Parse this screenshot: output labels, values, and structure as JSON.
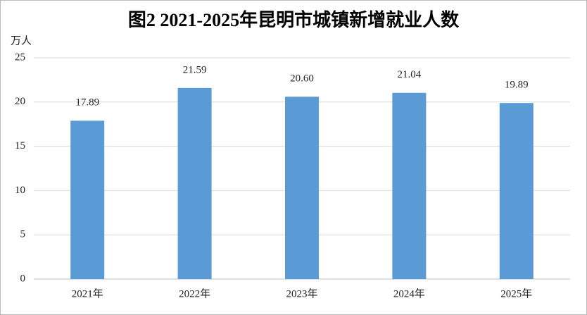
{
  "chart_data": {
    "type": "bar",
    "title": "图2 2021-2025年昆明市城镇新增就业人数",
    "y_label": "万人",
    "categories": [
      "2021年",
      "2022年",
      "2023年",
      "2024年",
      "2025年"
    ],
    "values": [
      17.89,
      21.59,
      20.6,
      21.04,
      19.89
    ],
    "value_labels": [
      "17.89",
      "21.59",
      "20.60",
      "21.04",
      "19.89"
    ],
    "color": "#5b9bd5",
    "ylim": [
      0,
      25
    ],
    "yticks": [
      0,
      5,
      10,
      15,
      20,
      25
    ],
    "grid": true
  }
}
